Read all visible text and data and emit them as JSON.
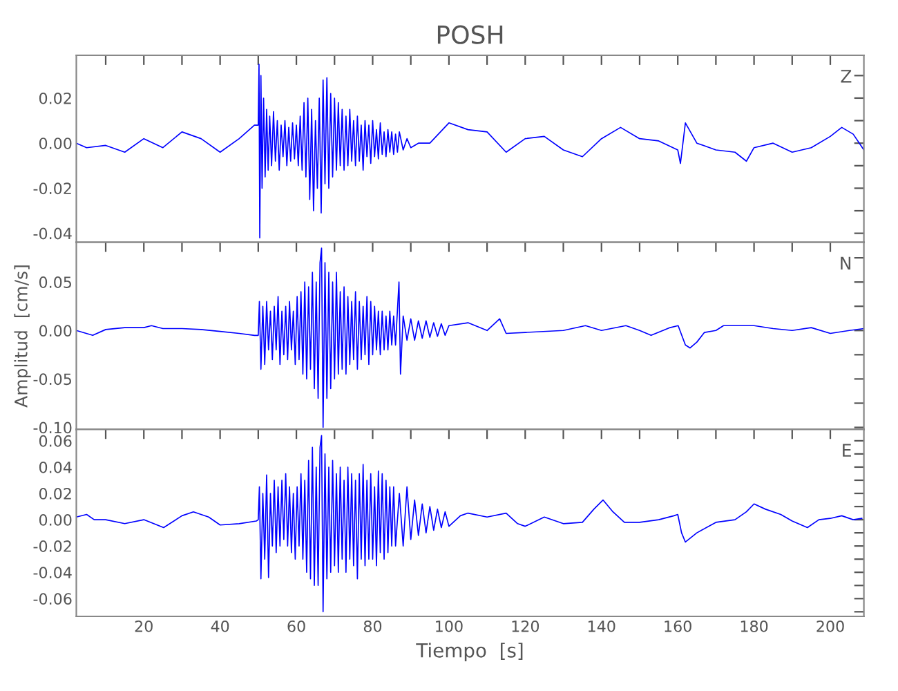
{
  "chart_data": [
    {
      "type": "line",
      "title": "POSH",
      "annotations": [
        "Z"
      ],
      "tick_labels": "y",
      "grid": false,
      "xlim": [
        2.3,
        208.8
      ],
      "ylim": [
        -0.044,
        0.039
      ],
      "xticks": [
        {
          "value": 10,
          "label": null
        },
        {
          "value": 20,
          "label": null
        },
        {
          "value": 30,
          "label": null
        },
        {
          "value": 40,
          "label": null
        },
        {
          "value": 50,
          "label": null
        },
        {
          "value": 60,
          "label": null
        },
        {
          "value": 70,
          "label": null
        },
        {
          "value": 80,
          "label": null
        },
        {
          "value": 90,
          "label": null
        },
        {
          "value": 100,
          "label": null
        },
        {
          "value": 110,
          "label": null
        },
        {
          "value": 120,
          "label": null
        },
        {
          "value": 130,
          "label": null
        },
        {
          "value": 140,
          "label": null
        },
        {
          "value": 150,
          "label": null
        },
        {
          "value": 160,
          "label": null
        },
        {
          "value": 170,
          "label": null
        },
        {
          "value": 180,
          "label": null
        },
        {
          "value": 190,
          "label": null
        },
        {
          "value": 200,
          "label": null
        }
      ],
      "yticks": [
        {
          "value": -0.04,
          "label": "-0.04"
        },
        {
          "value": -0.03,
          "label": null
        },
        {
          "value": -0.02,
          "label": "-0.02"
        },
        {
          "value": -0.01,
          "label": null
        },
        {
          "value": 0.0,
          "label": "0.00"
        },
        {
          "value": 0.01,
          "label": null
        },
        {
          "value": 0.02,
          "label": "0.02"
        },
        {
          "value": 0.03,
          "label": null
        }
      ],
      "series": [
        {
          "color": "#0000ff",
          "x": [
            2.3,
            5,
            10,
            15,
            20,
            25,
            30,
            35,
            40,
            45,
            49,
            50.0,
            50.2,
            50.4,
            50.7,
            51.0,
            51.4,
            51.8,
            52.2,
            52.6,
            53,
            53.5,
            54,
            54.5,
            55,
            55.5,
            56,
            56.5,
            57,
            57.5,
            58,
            58.5,
            59,
            59.5,
            60,
            60.5,
            61,
            61.5,
            62,
            62.5,
            63,
            63.5,
            64,
            64.5,
            65,
            65.5,
            66,
            66.5,
            67,
            67.5,
            68,
            68.5,
            69,
            69.5,
            70,
            70.5,
            71,
            71.5,
            72,
            72.5,
            73,
            73.5,
            74,
            74.5,
            75,
            75.5,
            76,
            76.5,
            77,
            77.5,
            78,
            78.5,
            79,
            79.5,
            80,
            80.5,
            81,
            81.5,
            82,
            82.5,
            83,
            83.5,
            84,
            84.5,
            85,
            85.5,
            86,
            86.5,
            87,
            88,
            89,
            90,
            92,
            95,
            100,
            105,
            110,
            115,
            120,
            125,
            130,
            135,
            140,
            145,
            150,
            155,
            160,
            160.7,
            162,
            165,
            170,
            175,
            178,
            180,
            185,
            190,
            195,
            200,
            203,
            206,
            208.8
          ],
          "values": [
            0.0,
            -0.002,
            -0.001,
            -0.004,
            0.002,
            -0.002,
            0.005,
            0.002,
            -0.004,
            0.002,
            0.008,
            0.008,
            0.035,
            -0.042,
            0.03,
            -0.02,
            0.02,
            -0.015,
            0.015,
            -0.012,
            0.012,
            -0.01,
            0.014,
            -0.008,
            0.01,
            -0.012,
            0.008,
            -0.006,
            0.01,
            -0.01,
            0.007,
            -0.008,
            0.009,
            -0.007,
            0.008,
            -0.01,
            0.012,
            -0.012,
            0.018,
            -0.015,
            0.02,
            -0.025,
            0.015,
            -0.03,
            0.01,
            -0.02,
            0.02,
            -0.031,
            0.028,
            -0.018,
            0.029,
            -0.02,
            0.022,
            -0.015,
            0.02,
            -0.012,
            0.018,
            -0.01,
            0.015,
            -0.012,
            0.012,
            -0.01,
            0.015,
            -0.008,
            0.01,
            -0.01,
            0.012,
            -0.008,
            0.008,
            -0.012,
            0.01,
            -0.006,
            0.008,
            -0.009,
            0.01,
            -0.006,
            0.006,
            -0.007,
            0.009,
            -0.005,
            0.005,
            -0.006,
            0.006,
            -0.004,
            0.005,
            -0.005,
            0.004,
            -0.004,
            0.005,
            -0.003,
            0.002,
            -0.002,
            0.0,
            0.0,
            0.009,
            0.006,
            0.005,
            -0.004,
            0.002,
            0.003,
            -0.003,
            -0.006,
            0.002,
            0.007,
            0.002,
            0.001,
            -0.003,
            -0.009,
            0.009,
            0.0,
            -0.003,
            -0.004,
            -0.008,
            -0.002,
            0.0,
            -0.004,
            -0.002,
            0.003,
            0.007,
            0.004,
            -0.003
          ]
        }
      ]
    },
    {
      "type": "line",
      "ylabel": "Amplitud  [cm/s]",
      "annotations": [
        "N"
      ],
      "tick_labels": "y",
      "grid": false,
      "xlim": [
        2.3,
        208.8
      ],
      "ylim": [
        -0.102,
        0.091
      ],
      "xticks": [
        {
          "value": 10,
          "label": null
        },
        {
          "value": 20,
          "label": null
        },
        {
          "value": 30,
          "label": null
        },
        {
          "value": 40,
          "label": null
        },
        {
          "value": 50,
          "label": null
        },
        {
          "value": 60,
          "label": null
        },
        {
          "value": 70,
          "label": null
        },
        {
          "value": 80,
          "label": null
        },
        {
          "value": 90,
          "label": null
        },
        {
          "value": 100,
          "label": null
        },
        {
          "value": 110,
          "label": null
        },
        {
          "value": 120,
          "label": null
        },
        {
          "value": 130,
          "label": null
        },
        {
          "value": 140,
          "label": null
        },
        {
          "value": 150,
          "label": null
        },
        {
          "value": 160,
          "label": null
        },
        {
          "value": 170,
          "label": null
        },
        {
          "value": 180,
          "label": null
        },
        {
          "value": 190,
          "label": null
        },
        {
          "value": 200,
          "label": null
        }
      ],
      "yticks": [
        {
          "value": -0.1,
          "label": "-0.10"
        },
        {
          "value": -0.075,
          "label": null
        },
        {
          "value": -0.05,
          "label": "-0.05"
        },
        {
          "value": -0.025,
          "label": null
        },
        {
          "value": 0.0,
          "label": "0.00"
        },
        {
          "value": 0.025,
          "label": null
        },
        {
          "value": 0.05,
          "label": "0.05"
        },
        {
          "value": 0.075,
          "label": null
        }
      ],
      "series": [
        {
          "color": "#0000ff",
          "x": [
            2.3,
            6.6,
            10,
            15,
            20,
            22,
            25,
            30,
            35,
            40,
            45,
            49,
            50.0,
            50.3,
            50.7,
            51.2,
            51.7,
            52.2,
            52.7,
            53.2,
            53.7,
            54.2,
            54.7,
            55.2,
            55.7,
            56.2,
            56.7,
            57.2,
            57.7,
            58.2,
            58.7,
            59.2,
            59.7,
            60.2,
            60.7,
            61.2,
            61.7,
            62.2,
            62.7,
            63.2,
            63.7,
            64.2,
            64.7,
            65.2,
            65.7,
            66.2,
            66.6,
            67.0,
            67.5,
            68.0,
            68.5,
            69.0,
            69.5,
            70.0,
            70.5,
            71.0,
            71.5,
            72.0,
            72.5,
            73.0,
            73.5,
            74.0,
            74.5,
            75.0,
            75.5,
            76.0,
            76.5,
            77.0,
            77.5,
            78.0,
            78.5,
            79.0,
            79.5,
            80.0,
            80.5,
            81.0,
            81.5,
            82.0,
            82.5,
            83.0,
            83.5,
            84.0,
            84.5,
            85.0,
            85.5,
            86.0,
            86.9,
            87.3,
            88,
            89,
            90,
            91,
            92,
            93,
            94,
            95,
            96,
            97,
            98,
            99,
            100,
            105,
            110,
            113.3,
            115,
            120,
            130,
            135.8,
            140,
            146.4,
            150,
            153,
            158,
            160.1,
            162,
            163.2,
            165,
            167,
            170,
            172,
            180,
            185,
            190,
            195,
            200,
            205,
            208.8
          ],
          "values": [
            0.0,
            -0.005,
            0.001,
            0.003,
            0.003,
            0.005,
            0.002,
            0.002,
            0.001,
            -0.001,
            -0.003,
            -0.005,
            -0.005,
            0.03,
            -0.04,
            0.025,
            -0.035,
            0.03,
            -0.02,
            0.02,
            -0.03,
            0.025,
            -0.02,
            0.035,
            -0.035,
            0.02,
            -0.025,
            0.025,
            -0.03,
            0.03,
            -0.02,
            0.02,
            -0.035,
            0.035,
            -0.03,
            0.04,
            -0.045,
            0.05,
            -0.05,
            0.045,
            -0.04,
            0.06,
            -0.06,
            0.05,
            -0.07,
            0.07,
            0.085,
            -0.1,
            0.07,
            -0.07,
            0.06,
            -0.06,
            0.05,
            -0.05,
            0.06,
            -0.045,
            0.04,
            -0.04,
            0.045,
            -0.045,
            0.035,
            -0.035,
            0.03,
            -0.03,
            0.04,
            -0.04,
            0.03,
            -0.03,
            0.025,
            -0.025,
            0.035,
            -0.035,
            0.03,
            -0.025,
            0.025,
            -0.02,
            0.02,
            -0.025,
            0.02,
            -0.02,
            0.015,
            -0.02,
            0.02,
            -0.015,
            0.015,
            -0.015,
            0.05,
            -0.045,
            0.015,
            -0.01,
            0.012,
            -0.01,
            0.01,
            -0.008,
            0.01,
            -0.007,
            0.008,
            -0.006,
            0.007,
            -0.005,
            0.005,
            0.008,
            0.0,
            0.012,
            -0.003,
            -0.002,
            0.0,
            0.005,
            0.0,
            0.005,
            0.0,
            -0.005,
            0.003,
            0.005,
            -0.015,
            -0.018,
            -0.012,
            -0.002,
            0.0,
            0.005,
            0.005,
            0.002,
            0.0,
            0.003,
            -0.003,
            0.0,
            0.002
          ]
        }
      ]
    },
    {
      "type": "line",
      "xlabel": "Tiempo  [s]",
      "annotations": [
        "E"
      ],
      "grid": false,
      "xlim": [
        2.3,
        208.8
      ],
      "ylim": [
        -0.0735,
        0.0687
      ],
      "xticks": [
        {
          "value": 10,
          "label": null
        },
        20,
        {
          "value": 30,
          "label": null
        },
        40,
        {
          "value": 50,
          "label": null
        },
        60,
        {
          "value": 70,
          "label": null
        },
        80,
        {
          "value": 90,
          "label": null
        },
        100,
        {
          "value": 110,
          "label": null
        },
        120,
        {
          "value": 130,
          "label": null
        },
        140,
        {
          "value": 150,
          "label": null
        },
        160,
        {
          "value": 170,
          "label": null
        },
        180,
        {
          "value": 190,
          "label": null
        },
        200
      ],
      "yticks": [
        {
          "value": -0.07,
          "label": null
        },
        {
          "value": -0.06,
          "label": "-0.06"
        },
        {
          "value": -0.05,
          "label": null
        },
        {
          "value": -0.04,
          "label": "-0.04"
        },
        {
          "value": -0.03,
          "label": null
        },
        {
          "value": -0.02,
          "label": "-0.02"
        },
        {
          "value": -0.01,
          "label": null
        },
        {
          "value": 0.0,
          "label": "0.00"
        },
        {
          "value": 0.01,
          "label": null
        },
        {
          "value": 0.02,
          "label": "0.02"
        },
        {
          "value": 0.03,
          "label": null
        },
        {
          "value": 0.04,
          "label": "0.04"
        },
        {
          "value": 0.05,
          "label": null
        },
        {
          "value": 0.06,
          "label": "0.06"
        }
      ],
      "series": [
        {
          "color": "#0000ff",
          "x": [
            2.3,
            5,
            7,
            10,
            15,
            20,
            25.2,
            30,
            33,
            37,
            40,
            45,
            49.5,
            50.0,
            50.3,
            50.7,
            51.2,
            51.7,
            52.2,
            52.7,
            53.2,
            53.7,
            54.2,
            54.7,
            55.2,
            55.7,
            56.2,
            56.7,
            57.2,
            57.7,
            58.2,
            58.7,
            59.2,
            59.7,
            60.2,
            60.7,
            61.2,
            61.7,
            62.2,
            62.7,
            63.2,
            63.7,
            64.2,
            64.7,
            65.2,
            65.7,
            66.2,
            66.6,
            67.0,
            67.5,
            68.0,
            68.5,
            69.0,
            69.5,
            70.0,
            70.5,
            71.0,
            71.5,
            72.0,
            72.5,
            73.0,
            73.5,
            74.0,
            74.5,
            75.0,
            75.5,
            76.0,
            76.5,
            77.0,
            77.5,
            78.0,
            78.5,
            79.0,
            79.5,
            80.0,
            80.5,
            81.0,
            81.5,
            82.0,
            82.5,
            83.0,
            83.5,
            84.0,
            84.5,
            85.0,
            85.5,
            86.0,
            87,
            88,
            89,
            90,
            91,
            92,
            93,
            94,
            95,
            96,
            97,
            98,
            99,
            100,
            103,
            105,
            110,
            115,
            118,
            120,
            125,
            130,
            135,
            138,
            140.4,
            143,
            146,
            150,
            155,
            159,
            160,
            161,
            162,
            165,
            170,
            175,
            178,
            180,
            183,
            187,
            190,
            194,
            197,
            200,
            203,
            206,
            208.3
          ],
          "values": [
            0.002,
            0.004,
            0.0,
            0.0,
            -0.003,
            0.0,
            -0.006,
            0.003,
            0.006,
            0.002,
            -0.004,
            -0.003,
            -0.001,
            0.0,
            0.025,
            -0.045,
            0.02,
            -0.03,
            0.034,
            -0.044,
            0.02,
            -0.02,
            0.03,
            -0.025,
            0.025,
            -0.02,
            0.03,
            -0.015,
            0.035,
            -0.02,
            0.025,
            -0.025,
            0.02,
            -0.03,
            0.025,
            -0.02,
            0.035,
            -0.03,
            0.03,
            -0.04,
            0.045,
            -0.045,
            0.055,
            -0.05,
            0.04,
            -0.05,
            0.055,
            0.064,
            -0.07,
            0.05,
            -0.045,
            0.04,
            -0.04,
            0.045,
            -0.035,
            0.035,
            -0.04,
            0.04,
            -0.03,
            0.03,
            -0.04,
            0.04,
            -0.03,
            0.035,
            -0.035,
            0.03,
            -0.045,
            0.035,
            -0.03,
            0.042,
            -0.035,
            0.03,
            -0.03,
            0.035,
            -0.03,
            0.025,
            -0.035,
            0.037,
            -0.025,
            0.035,
            -0.03,
            0.03,
            -0.025,
            0.025,
            -0.02,
            0.025,
            -0.02,
            0.02,
            -0.02,
            0.025,
            -0.015,
            0.015,
            -0.012,
            0.012,
            -0.01,
            0.01,
            -0.008,
            0.008,
            -0.006,
            0.006,
            -0.005,
            0.003,
            0.005,
            0.002,
            0.005,
            -0.003,
            -0.005,
            0.002,
            -0.003,
            -0.002,
            0.008,
            0.015,
            0.006,
            -0.002,
            -0.002,
            0.0,
            0.003,
            0.004,
            -0.01,
            -0.017,
            -0.01,
            -0.002,
            0.0,
            0.006,
            0.012,
            0.008,
            0.004,
            -0.001,
            -0.006,
            0.0,
            0.001,
            0.003,
            0.0,
            0.001
          ]
        }
      ]
    }
  ]
}
